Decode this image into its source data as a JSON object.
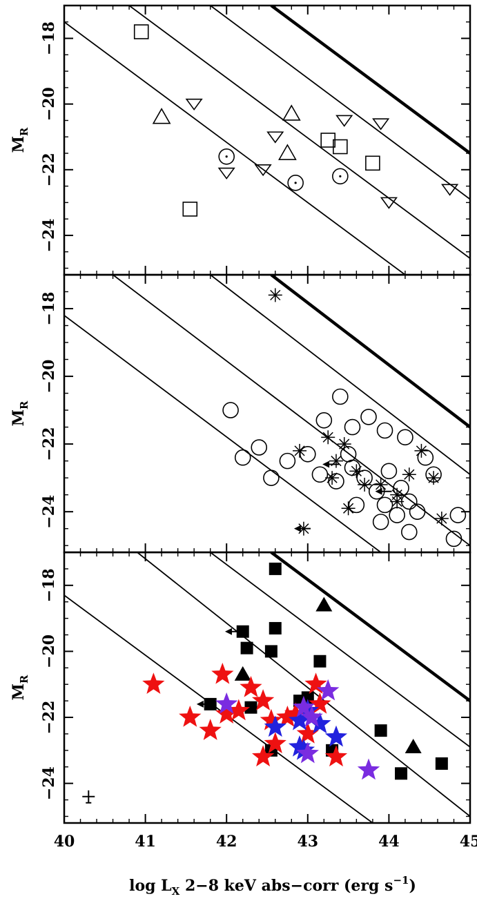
{
  "figure": {
    "xlabel": "log L",
    "xlabel_sub": "X",
    "xlabel_rest": " 2−8 keV abs−corr (erg s",
    "xlabel_sup": "−1",
    "xlabel_end": ")",
    "ylabel_main": "M",
    "ylabel_sub": "R"
  },
  "chart_data": [
    {
      "type": "scatter",
      "panel": "top",
      "xlim": [
        40,
        45
      ],
      "ylim": [
        -25.2,
        -17
      ],
      "y_reversed": true,
      "x_ticks": [
        40,
        41,
        42,
        43,
        44,
        45
      ],
      "y_ticks": [
        -18,
        -20,
        -22,
        -24
      ],
      "y_tick_labels": [
        "−18",
        "−20",
        "−22",
        "−24"
      ],
      "lines": [
        {
          "x": [
            40,
            44.2
          ],
          "y": [
            -17.5,
            -25.2
          ],
          "bold": false
        },
        {
          "x": [
            40.8,
            45
          ],
          "y": [
            -17,
            -24.7
          ],
          "bold": false
        },
        {
          "x": [
            41.8,
            45
          ],
          "y": [
            -17,
            -22.9
          ],
          "bold": false
        },
        {
          "x": [
            42.55,
            45
          ],
          "y": [
            -17,
            -21.5
          ],
          "bold": true
        }
      ],
      "series": [
        {
          "marker": "open-square",
          "points": [
            [
              40.95,
              -17.8
            ],
            [
              41.55,
              -23.2
            ],
            [
              43.25,
              -21.1
            ],
            [
              43.4,
              -21.3
            ],
            [
              43.8,
              -21.8
            ]
          ]
        },
        {
          "marker": "open-triangle-up",
          "points": [
            [
              41.2,
              -20.4
            ],
            [
              42.8,
              -20.3
            ],
            [
              42.75,
              -21.5
            ]
          ]
        },
        {
          "marker": "open-triangle-down",
          "points": [
            [
              41.6,
              -20.0
            ],
            [
              42.0,
              -22.1
            ],
            [
              42.6,
              -21.0
            ],
            [
              42.45,
              -22.0
            ],
            [
              43.45,
              -20.5
            ],
            [
              43.9,
              -20.6
            ],
            [
              44.0,
              -23.0
            ],
            [
              44.75,
              -22.6
            ]
          ]
        },
        {
          "marker": "circle-dot",
          "points": [
            [
              42.0,
              -21.6
            ],
            [
              42.85,
              -22.4
            ],
            [
              43.4,
              -22.2
            ]
          ]
        }
      ]
    },
    {
      "type": "scatter",
      "panel": "middle",
      "xlim": [
        40,
        45
      ],
      "ylim": [
        -25.2,
        -17
      ],
      "y_reversed": true,
      "x_ticks": [
        40,
        41,
        42,
        43,
        44,
        45
      ],
      "y_ticks": [
        -18,
        -20,
        -22,
        -24
      ],
      "y_tick_labels": [
        "−18",
        "−20",
        "−22",
        "−24"
      ],
      "lines": [
        {
          "x": [
            40,
            43.9
          ],
          "y": [
            -18.2,
            -25.2
          ],
          "bold": false
        },
        {
          "x": [
            40.6,
            45
          ],
          "y": [
            -17,
            -25
          ],
          "bold": false
        },
        {
          "x": [
            41.8,
            45
          ],
          "y": [
            -17,
            -22.9
          ],
          "bold": false
        },
        {
          "x": [
            42.55,
            45
          ],
          "y": [
            -17,
            -21.5
          ],
          "bold": true
        }
      ],
      "series": [
        {
          "marker": "open-circle",
          "points": [
            [
              42.05,
              -21.0
            ],
            [
              42.55,
              -23.0
            ],
            [
              42.2,
              -22.4
            ],
            [
              42.4,
              -22.1
            ],
            [
              42.75,
              -22.5
            ],
            [
              43.0,
              -22.3
            ],
            [
              43.2,
              -21.3
            ],
            [
              43.4,
              -20.6
            ],
            [
              43.55,
              -21.5
            ],
            [
              43.75,
              -21.2
            ],
            [
              43.95,
              -21.6
            ],
            [
              43.55,
              -22.7
            ],
            [
              43.7,
              -23.0
            ],
            [
              43.85,
              -23.4
            ],
            [
              43.6,
              -23.8
            ],
            [
              43.95,
              -23.8
            ],
            [
              44.15,
              -23.3
            ],
            [
              44.25,
              -23.7
            ],
            [
              44.45,
              -22.4
            ],
            [
              44.0,
              -22.8
            ],
            [
              43.5,
              -22.3
            ],
            [
              43.35,
              -23.1
            ],
            [
              43.15,
              -22.9
            ],
            [
              43.9,
              -24.3
            ],
            [
              44.1,
              -24.1
            ],
            [
              44.25,
              -24.6
            ],
            [
              44.35,
              -24.0
            ],
            [
              44.55,
              -22.9
            ],
            [
              44.85,
              -24.1
            ],
            [
              44.8,
              -24.8
            ],
            [
              44.2,
              -21.8
            ]
          ]
        },
        {
          "marker": "asterisk",
          "points": [
            [
              42.6,
              -17.6
            ],
            [
              43.25,
              -21.8
            ],
            [
              43.45,
              -22.0
            ],
            [
              43.35,
              -22.5
            ],
            [
              43.6,
              -22.8
            ],
            [
              43.7,
              -23.2
            ],
            [
              43.3,
              -23.0
            ],
            [
              43.9,
              -23.2
            ],
            [
              44.1,
              -23.5
            ],
            [
              43.5,
              -23.9
            ],
            [
              44.25,
              -22.9
            ],
            [
              44.4,
              -22.2
            ],
            [
              44.55,
              -23.0
            ],
            [
              44.65,
              -24.2
            ],
            [
              44.1,
              -23.7
            ],
            [
              42.95,
              -24.5
            ],
            [
              42.9,
              -22.2
            ]
          ]
        },
        {
          "marker": "left-arrow",
          "points": [
            [
              43.3,
              -22.6
            ],
            [
              42.95,
              -24.5
            ],
            [
              43.95,
              -23.4
            ]
          ]
        }
      ]
    },
    {
      "type": "scatter",
      "panel": "bottom",
      "xlim": [
        40,
        45
      ],
      "ylim": [
        -25.2,
        -17
      ],
      "y_reversed": true,
      "x_ticks": [
        40,
        41,
        42,
        43,
        44,
        45
      ],
      "x_tick_labels": [
        "40",
        "41",
        "42",
        "43",
        "44",
        "45"
      ],
      "y_ticks": [
        -18,
        -20,
        -22,
        -24
      ],
      "y_tick_labels": [
        "−18",
        "−20",
        "−22",
        "−24"
      ],
      "lines": [
        {
          "x": [
            40,
            43.8
          ],
          "y": [
            -18.3,
            -25.2
          ],
          "bold": false
        },
        {
          "x": [
            40.9,
            45
          ],
          "y": [
            -17,
            -25
          ],
          "bold": false
        },
        {
          "x": [
            41.8,
            45
          ],
          "y": [
            -17,
            -22.9
          ],
          "bold": false
        },
        {
          "x": [
            42.55,
            45
          ],
          "y": [
            -17,
            -21.5
          ],
          "bold": true
        }
      ],
      "series": [
        {
          "marker": "filled-square",
          "color": "#000000",
          "points": [
            [
              42.6,
              -17.5
            ],
            [
              42.2,
              -19.4
            ],
            [
              42.6,
              -19.3
            ],
            [
              42.55,
              -20.0
            ],
            [
              42.25,
              -19.9
            ],
            [
              43.15,
              -20.3
            ],
            [
              42.9,
              -21.5
            ],
            [
              42.3,
              -21.7
            ],
            [
              43.0,
              -21.4
            ],
            [
              43.9,
              -22.4
            ],
            [
              43.3,
              -23.0
            ],
            [
              44.15,
              -23.7
            ],
            [
              44.65,
              -23.4
            ],
            [
              42.55,
              -23.0
            ],
            [
              41.8,
              -21.6
            ]
          ]
        },
        {
          "marker": "filled-triangle-up",
          "color": "#000000",
          "points": [
            [
              43.2,
              -18.6
            ],
            [
              42.2,
              -20.7
            ],
            [
              44.3,
              -22.9
            ]
          ]
        },
        {
          "marker": "red-star",
          "color": "#ee1111",
          "points": [
            [
              41.1,
              -21.0
            ],
            [
              41.55,
              -22.0
            ],
            [
              41.8,
              -22.4
            ],
            [
              42.0,
              -21.9
            ],
            [
              41.95,
              -20.7
            ],
            [
              42.15,
              -21.8
            ],
            [
              42.3,
              -21.1
            ],
            [
              42.45,
              -21.5
            ],
            [
              42.55,
              -22.1
            ],
            [
              42.45,
              -23.2
            ],
            [
              42.6,
              -22.8
            ],
            [
              42.85,
              -21.9
            ],
            [
              43.0,
              -21.8
            ],
            [
              43.1,
              -21.0
            ],
            [
              43.15,
              -21.6
            ],
            [
              43.0,
              -22.5
            ],
            [
              43.35,
              -23.2
            ],
            [
              42.75,
              -22.0
            ]
          ]
        },
        {
          "marker": "blue-star",
          "color": "#2222dd",
          "points": [
            [
              42.6,
              -22.3
            ],
            [
              42.9,
              -22.1
            ],
            [
              43.0,
              -21.8
            ],
            [
              43.15,
              -22.2
            ],
            [
              43.35,
              -22.6
            ],
            [
              42.9,
              -22.9
            ],
            [
              42.95,
              -23.0
            ]
          ]
        },
        {
          "marker": "purple-star",
          "color": "#7a2ce0",
          "points": [
            [
              42.0,
              -21.6
            ],
            [
              43.25,
              -21.2
            ],
            [
              42.95,
              -21.7
            ],
            [
              43.05,
              -22.0
            ],
            [
              43.0,
              -23.1
            ],
            [
              43.75,
              -23.6
            ]
          ]
        },
        {
          "marker": "left-arrow",
          "color": "#000000",
          "points": [
            [
              42.1,
              -19.4
            ],
            [
              41.75,
              -21.6
            ]
          ]
        },
        {
          "marker": "error-bar",
          "color": "#000000",
          "points": [
            [
              40.3,
              -24.4
            ]
          ]
        }
      ]
    }
  ]
}
